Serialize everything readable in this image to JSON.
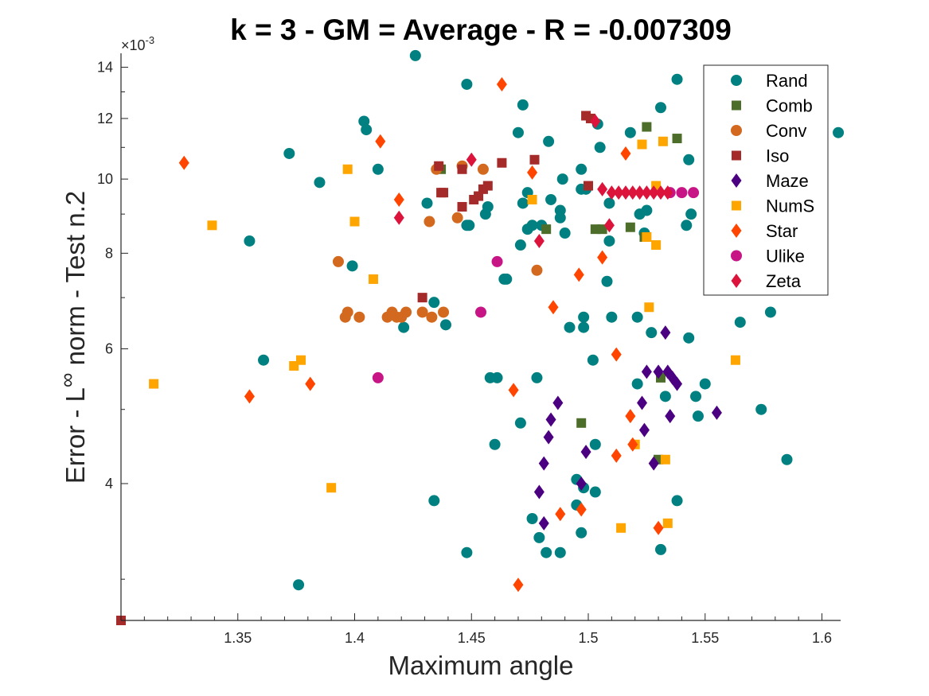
{
  "chart_data": {
    "type": "scatter",
    "title": "k = 3 - GM = Average - R = -0.007309",
    "xlabel": "Maximum angle",
    "ylabel_parts": [
      "Error - L",
      "∞",
      " norm - Test n.2"
    ],
    "y_scale": "log",
    "y_exponent_label": "×10",
    "y_exponent_power": "-3",
    "xlim": [
      1.3,
      1.608
    ],
    "ylim": [
      2.65,
      14.6
    ],
    "x_ticks": [
      1.35,
      1.4,
      1.45,
      1.5,
      1.55,
      1.6
    ],
    "x_tick_labels": [
      "1.35",
      "1.4",
      "1.45",
      "1.5",
      "1.55",
      "1.6"
    ],
    "y_ticks": [
      4,
      6,
      8,
      10,
      12,
      14
    ],
    "y_tick_labels": [
      "4",
      "6",
      "8",
      "10",
      "12",
      "14"
    ],
    "legend_position": "top-right",
    "series": [
      {
        "name": "Rand",
        "color": "#008080",
        "marker": "circle",
        "points": [
          [
            1.426,
            14.5
          ],
          [
            1.538,
            13.5
          ],
          [
            1.448,
            13.3
          ],
          [
            1.472,
            12.5
          ],
          [
            1.531,
            12.4
          ],
          [
            1.504,
            11.8
          ],
          [
            1.505,
            11.0
          ],
          [
            1.404,
            11.9
          ],
          [
            1.405,
            11.6
          ],
          [
            1.47,
            11.5
          ],
          [
            1.483,
            11.2
          ],
          [
            1.518,
            11.5
          ],
          [
            1.607,
            11.5
          ],
          [
            1.372,
            10.8
          ],
          [
            1.41,
            10.3
          ],
          [
            1.497,
            10.3
          ],
          [
            1.543,
            10.6
          ],
          [
            1.385,
            9.9
          ],
          [
            1.474,
            9.6
          ],
          [
            1.489,
            10.0
          ],
          [
            1.497,
            9.7
          ],
          [
            1.499,
            9.7
          ],
          [
            1.509,
            9.3
          ],
          [
            1.522,
            9.0
          ],
          [
            1.525,
            9.1
          ],
          [
            1.544,
            9.0
          ],
          [
            1.557,
            9.6
          ],
          [
            1.431,
            9.3
          ],
          [
            1.456,
            9.0
          ],
          [
            1.457,
            9.2
          ],
          [
            1.472,
            9.3
          ],
          [
            1.476,
            8.7
          ],
          [
            1.474,
            8.6
          ],
          [
            1.48,
            8.7
          ],
          [
            1.484,
            9.4
          ],
          [
            1.488,
            9.1
          ],
          [
            1.488,
            8.9
          ],
          [
            1.542,
            8.7
          ],
          [
            1.449,
            8.7
          ],
          [
            1.448,
            8.7
          ],
          [
            1.524,
            8.5
          ],
          [
            1.49,
            8.5
          ],
          [
            1.471,
            8.2
          ],
          [
            1.509,
            8.3
          ],
          [
            1.355,
            8.3
          ],
          [
            1.399,
            7.7
          ],
          [
            1.464,
            7.4
          ],
          [
            1.465,
            7.4
          ],
          [
            1.508,
            7.35
          ],
          [
            1.434,
            6.9
          ],
          [
            1.498,
            6.6
          ],
          [
            1.498,
            6.4
          ],
          [
            1.51,
            6.6
          ],
          [
            1.521,
            6.6
          ],
          [
            1.492,
            6.4
          ],
          [
            1.527,
            6.3
          ],
          [
            1.543,
            6.2
          ],
          [
            1.565,
            6.5
          ],
          [
            1.578,
            6.7
          ],
          [
            1.421,
            6.4
          ],
          [
            1.439,
            6.45
          ],
          [
            1.361,
            5.8
          ],
          [
            1.502,
            5.8
          ],
          [
            1.458,
            5.5
          ],
          [
            1.461,
            5.5
          ],
          [
            1.478,
            5.5
          ],
          [
            1.521,
            5.4
          ],
          [
            1.533,
            5.2
          ],
          [
            1.55,
            5.4
          ],
          [
            1.546,
            5.2
          ],
          [
            1.574,
            5.0
          ],
          [
            1.547,
            4.9
          ],
          [
            1.471,
            4.8
          ],
          [
            1.46,
            4.5
          ],
          [
            1.503,
            4.5
          ],
          [
            1.585,
            4.3
          ],
          [
            1.495,
            4.05
          ],
          [
            1.498,
            3.95
          ],
          [
            1.503,
            3.9
          ],
          [
            1.495,
            3.75
          ],
          [
            1.434,
            3.8
          ],
          [
            1.538,
            3.8
          ],
          [
            1.476,
            3.6
          ],
          [
            1.479,
            3.4
          ],
          [
            1.497,
            3.45
          ],
          [
            1.448,
            3.25
          ],
          [
            1.482,
            3.25
          ],
          [
            1.488,
            3.25
          ],
          [
            1.531,
            3.28
          ],
          [
            1.376,
            2.95
          ]
        ]
      },
      {
        "name": "Comb",
        "color": "#4d6e2b",
        "marker": "square",
        "points": [
          [
            1.525,
            11.7
          ],
          [
            1.538,
            11.3
          ],
          [
            1.437,
            10.3
          ],
          [
            1.482,
            8.6
          ],
          [
            1.503,
            8.6
          ],
          [
            1.506,
            8.6
          ],
          [
            1.518,
            8.65
          ],
          [
            1.524,
            8.4
          ],
          [
            1.531,
            5.5
          ],
          [
            1.53,
            4.3
          ],
          [
            1.497,
            4.8
          ]
        ]
      },
      {
        "name": "Conv",
        "color": "#d2691e",
        "marker": "circle",
        "points": [
          [
            1.435,
            10.3
          ],
          [
            1.446,
            10.4
          ],
          [
            1.455,
            10.3
          ],
          [
            1.432,
            8.8
          ],
          [
            1.444,
            8.9
          ],
          [
            1.393,
            7.8
          ],
          [
            1.478,
            7.6
          ],
          [
            1.396,
            6.6
          ],
          [
            1.397,
            6.7
          ],
          [
            1.402,
            6.6
          ],
          [
            1.414,
            6.6
          ],
          [
            1.416,
            6.7
          ],
          [
            1.418,
            6.6
          ],
          [
            1.42,
            6.6
          ],
          [
            1.422,
            6.7
          ],
          [
            1.429,
            6.7
          ],
          [
            1.433,
            6.6
          ],
          [
            1.438,
            6.7
          ]
        ]
      },
      {
        "name": "Iso",
        "color": "#a52a2a",
        "marker": "square",
        "points": [
          [
            1.499,
            12.1
          ],
          [
            1.501,
            12.0
          ],
          [
            1.436,
            10.4
          ],
          [
            1.446,
            10.3
          ],
          [
            1.463,
            10.5
          ],
          [
            1.477,
            10.6
          ],
          [
            1.5,
            9.8
          ],
          [
            1.437,
            9.6
          ],
          [
            1.438,
            9.6
          ],
          [
            1.455,
            9.7
          ],
          [
            1.457,
            9.8
          ],
          [
            1.451,
            9.4
          ],
          [
            1.453,
            9.5
          ],
          [
            1.446,
            9.2
          ],
          [
            1.429,
            7.0
          ],
          [
            1.3,
            2.65
          ]
        ]
      },
      {
        "name": "Maze",
        "color": "#4b0082",
        "marker": "diamond",
        "points": [
          [
            1.533,
            6.3
          ],
          [
            1.525,
            5.6
          ],
          [
            1.53,
            5.6
          ],
          [
            1.534,
            5.6
          ],
          [
            1.536,
            5.5
          ],
          [
            1.538,
            5.4
          ],
          [
            1.523,
            5.1
          ],
          [
            1.535,
            4.9
          ],
          [
            1.555,
            4.95
          ],
          [
            1.487,
            5.1
          ],
          [
            1.484,
            4.85
          ],
          [
            1.483,
            4.6
          ],
          [
            1.499,
            4.4
          ],
          [
            1.524,
            4.7
          ],
          [
            1.528,
            4.25
          ],
          [
            1.481,
            4.25
          ],
          [
            1.479,
            3.9
          ],
          [
            1.497,
            4.0
          ],
          [
            1.481,
            3.55
          ]
        ]
      },
      {
        "name": "NumS",
        "color": "#ffa500",
        "marker": "square",
        "points": [
          [
            1.523,
            11.1
          ],
          [
            1.532,
            11.2
          ],
          [
            1.397,
            10.3
          ],
          [
            1.529,
            9.8
          ],
          [
            1.4,
            8.8
          ],
          [
            1.476,
            9.4
          ],
          [
            1.339,
            8.7
          ],
          [
            1.525,
            8.4
          ],
          [
            1.529,
            8.2
          ],
          [
            1.408,
            7.4
          ],
          [
            1.526,
            6.8
          ],
          [
            1.563,
            5.8
          ],
          [
            1.314,
            5.4
          ],
          [
            1.374,
            5.7
          ],
          [
            1.377,
            5.8
          ],
          [
            1.52,
            4.5
          ],
          [
            1.533,
            4.3
          ],
          [
            1.39,
            3.95
          ],
          [
            1.514,
            3.5
          ],
          [
            1.534,
            3.55
          ]
        ]
      },
      {
        "name": "Star",
        "color": "#ff4500",
        "marker": "diamond",
        "points": [
          [
            1.463,
            13.3
          ],
          [
            1.411,
            11.2
          ],
          [
            1.516,
            10.8
          ],
          [
            1.327,
            10.5
          ],
          [
            1.476,
            10.2
          ],
          [
            1.419,
            9.4
          ],
          [
            1.506,
            7.9
          ],
          [
            1.496,
            7.5
          ],
          [
            1.485,
            6.8
          ],
          [
            1.512,
            5.9
          ],
          [
            1.381,
            5.4
          ],
          [
            1.468,
            5.3
          ],
          [
            1.355,
            5.2
          ],
          [
            1.518,
            4.9
          ],
          [
            1.519,
            4.5
          ],
          [
            1.512,
            4.35
          ],
          [
            1.497,
            3.7
          ],
          [
            1.488,
            3.65
          ],
          [
            1.53,
            3.5
          ],
          [
            1.47,
            2.95
          ]
        ]
      },
      {
        "name": "Ulike",
        "color": "#c71585",
        "marker": "circle",
        "points": [
          [
            1.535,
            9.6
          ],
          [
            1.54,
            9.6
          ],
          [
            1.545,
            9.6
          ],
          [
            1.461,
            7.8
          ],
          [
            1.454,
            6.7
          ],
          [
            1.41,
            5.5
          ]
        ]
      },
      {
        "name": "Zeta",
        "color": "#dc143c",
        "marker": "diamond",
        "points": [
          [
            1.503,
            11.9
          ],
          [
            1.45,
            10.6
          ],
          [
            1.419,
            8.9
          ],
          [
            1.479,
            8.3
          ],
          [
            1.509,
            8.7
          ],
          [
            1.506,
            9.7
          ],
          [
            1.51,
            9.6
          ],
          [
            1.513,
            9.6
          ],
          [
            1.516,
            9.6
          ],
          [
            1.519,
            9.6
          ],
          [
            1.522,
            9.6
          ],
          [
            1.525,
            9.6
          ],
          [
            1.528,
            9.6
          ],
          [
            1.531,
            9.6
          ],
          [
            1.534,
            9.6
          ]
        ]
      }
    ]
  }
}
